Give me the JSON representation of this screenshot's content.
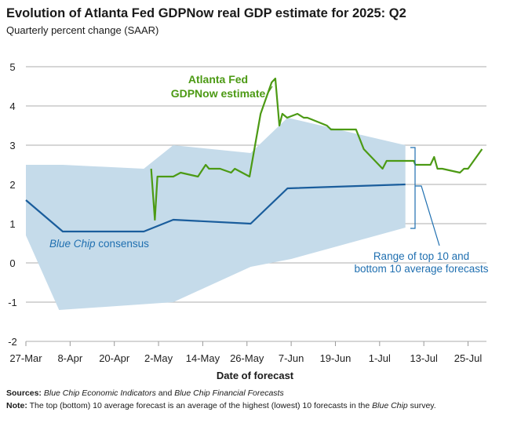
{
  "chart_data": {
    "type": "line",
    "title": "Evolution of Atlanta Fed GDPNow real GDP estimate for 2025: Q2",
    "subtitle": "Quarterly percent change (SAAR)",
    "xlabel": "Date of forecast",
    "x_units": "days since 27-Mar",
    "xlim": [
      0,
      125
    ],
    "ylim": [
      -2,
      5
    ],
    "yticks": [
      5,
      4,
      3,
      2,
      1,
      0,
      -1,
      -2
    ],
    "xticks": [
      {
        "day": 0,
        "label": "27-Mar"
      },
      {
        "day": 12,
        "label": "8-Apr"
      },
      {
        "day": 24,
        "label": "20-Apr"
      },
      {
        "day": 36,
        "label": "2-May"
      },
      {
        "day": 48,
        "label": "14-May"
      },
      {
        "day": 60,
        "label": "26-May"
      },
      {
        "day": 72,
        "label": "7-Jun"
      },
      {
        "day": 84,
        "label": "19-Jun"
      },
      {
        "day": 96,
        "label": "1-Jul"
      },
      {
        "day": 108,
        "label": "13-Jul"
      },
      {
        "day": 120,
        "label": "25-Jul"
      }
    ],
    "grid": true,
    "series": [
      {
        "name": "Atlanta Fed GDPNow estimate",
        "color": "#4c9a14",
        "x": [
          34,
          35,
          35.7,
          40,
          42,
          46.7,
          48.8,
          49.7,
          52.7,
          55.7,
          56.7,
          60.7,
          63.7,
          66.7,
          67.7,
          68.8,
          69.6,
          70.9,
          73.7,
          75.4,
          76.4,
          81.7,
          82.8,
          89.6,
          91.7,
          96.8,
          97.9,
          105.3,
          105.7,
          109.8,
          110.8,
          111.7,
          113,
          117.8,
          118.9,
          120,
          123.8
        ],
        "y": [
          2.4,
          1.1,
          2.2,
          2.2,
          2.3,
          2.2,
          2.5,
          2.4,
          2.4,
          2.3,
          2.4,
          2.2,
          3.8,
          4.6,
          4.7,
          3.5,
          3.8,
          3.7,
          3.8,
          3.7,
          3.7,
          3.5,
          3.4,
          3.4,
          2.9,
          2.4,
          2.6,
          2.6,
          2.5,
          2.5,
          2.7,
          2.4,
          2.4,
          2.3,
          2.4,
          2.4,
          2.9
        ]
      },
      {
        "name": "Blue Chip consensus",
        "color": "#1a5d9c",
        "x": [
          0,
          10,
          32,
          40,
          61,
          71,
          103
        ],
        "y": [
          1.6,
          0.8,
          0.8,
          1.1,
          1.0,
          1.9,
          2.0
        ]
      }
    ],
    "band": {
      "name": "Range of top 10 and bottom 10 average forecasts",
      "color": "#c5dbea",
      "upper": {
        "x": [
          0,
          10,
          32,
          40,
          61,
          71,
          103
        ],
        "y": [
          2.5,
          2.5,
          2.4,
          3.0,
          2.8,
          3.7,
          3.0
        ]
      },
      "lower": {
        "x": [
          0,
          9,
          40,
          61,
          72,
          103
        ],
        "y": [
          0.7,
          -1.2,
          -1.0,
          -0.1,
          0.1,
          0.9
        ]
      }
    },
    "annotations": {
      "gdpnow_line1": "Atlanta Fed",
      "gdpnow_line2": "GDPNow estimate",
      "bluechip_italic": "Blue Chip",
      "bluechip_rest": " consensus",
      "range_line1": "Range of top 10 and",
      "range_line2": "bottom 10 average forecasts"
    }
  },
  "footer": {
    "sources_label": "Sources:",
    "sources_1": "Blue Chip Economic Indicators",
    "sources_2": " and ",
    "sources_3": "Blue Chip Financial Forecasts",
    "note_label": "Note:",
    "note_1": " The top (bottom) 10 average forecast is an average of the highest (lowest) 10 forecasts in the ",
    "note_2": "Blue Chip",
    "note_3": " survey."
  }
}
